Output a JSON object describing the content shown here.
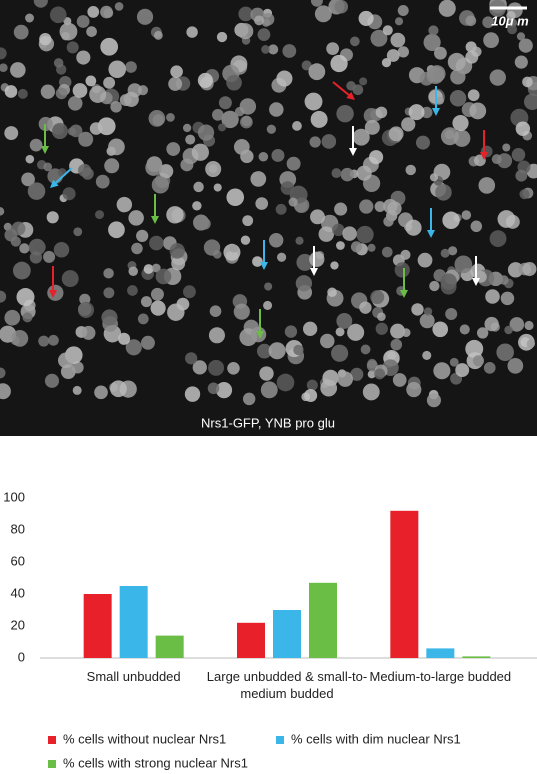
{
  "image": {
    "caption": "Nrs1-GFP, YNB pro glu",
    "scale_bar": "10μ m"
  },
  "chart_data": {
    "type": "bar",
    "categories": [
      "Small unbudded",
      "Large unbudded & small-to-medium budded",
      "Medium-to-large budded"
    ],
    "series": [
      {
        "name": "% cells without nuclear Nrs1",
        "color": "#e8202a",
        "values": [
          40,
          22,
          92
        ]
      },
      {
        "name": "% cells with dim nuclear Nrs1",
        "color": "#3bb6e8",
        "values": [
          45,
          30,
          6
        ]
      },
      {
        "name": "% cells with strong nuclear Nrs1",
        "color": "#6abd45",
        "values": [
          14,
          47,
          1
        ]
      }
    ],
    "ylim": [
      0,
      100
    ],
    "yticks": [
      0,
      20,
      40,
      60,
      80,
      100
    ],
    "grid": false
  }
}
